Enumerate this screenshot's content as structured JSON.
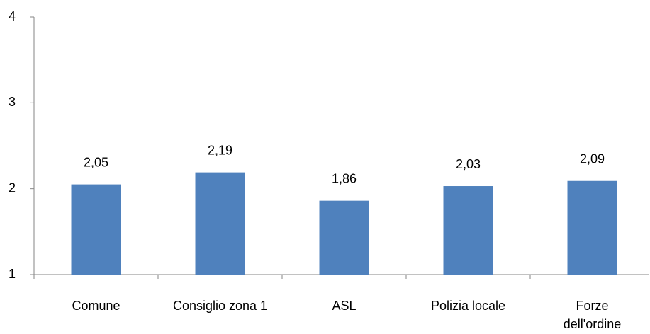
{
  "chart_data": {
    "type": "bar",
    "categories": [
      "Comune",
      "Consiglio zona 1",
      "ASL",
      "Polizia locale",
      "Forze dell'ordine"
    ],
    "values": [
      2.05,
      2.19,
      1.86,
      2.03,
      2.09
    ],
    "value_labels": [
      "2,05",
      "2,19",
      "1,86",
      "2,03",
      "2,09"
    ],
    "color": "#4f81bd",
    "ylim": [
      1,
      4
    ],
    "yticks": [
      1,
      2,
      3,
      4
    ],
    "grid": false
  }
}
